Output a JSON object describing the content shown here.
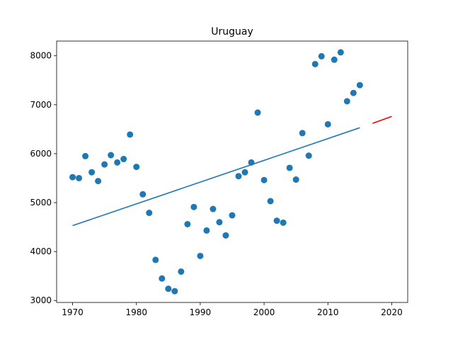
{
  "chart_data": {
    "type": "scatter",
    "title": "Uruguay",
    "xlabel": "",
    "ylabel": "",
    "xlim": [
      1967.5,
      2022.5
    ],
    "ylim": [
      2960,
      8300
    ],
    "xticks": [
      1970,
      1980,
      1990,
      2000,
      2010,
      2020
    ],
    "yticks": [
      3000,
      4000,
      5000,
      6000,
      7000,
      8000
    ],
    "grid": false,
    "legend": "none",
    "series": [
      {
        "kind": "scatter",
        "color": "#1f77b4",
        "x": [
          1970,
          1971,
          1972,
          1973,
          1974,
          1975,
          1976,
          1977,
          1978,
          1979,
          1980,
          1981,
          1982,
          1983,
          1984,
          1985,
          1986,
          1987,
          1988,
          1989,
          1990,
          1991,
          1992,
          1993,
          1994,
          1995,
          1996,
          1997,
          1998,
          1999,
          2000,
          2001,
          2002,
          2003,
          2004,
          2005,
          2006,
          2007,
          2008,
          2009,
          2010,
          2011,
          2012,
          2013,
          2014,
          2015
        ],
        "y": [
          5520,
          5500,
          5950,
          5620,
          5440,
          5780,
          5970,
          5820,
          5890,
          6390,
          5730,
          5170,
          4790,
          3830,
          3450,
          3240,
          3190,
          3590,
          4560,
          4910,
          3910,
          4430,
          4870,
          4600,
          4330,
          4740,
          5540,
          5620,
          5820,
          6840,
          5460,
          5030,
          4630,
          4590,
          5710,
          5470,
          6420,
          5960,
          7830,
          7990,
          6600,
          7920,
          8070,
          7070,
          7240,
          7400
        ]
      },
      {
        "kind": "line",
        "color": "#1f77b4",
        "x": [
          1970,
          2015
        ],
        "y": [
          4530,
          6530
        ]
      },
      {
        "kind": "line",
        "color": "#ff0000",
        "x": [
          2017,
          2020
        ],
        "y": [
          6620,
          6760
        ]
      }
    ]
  }
}
